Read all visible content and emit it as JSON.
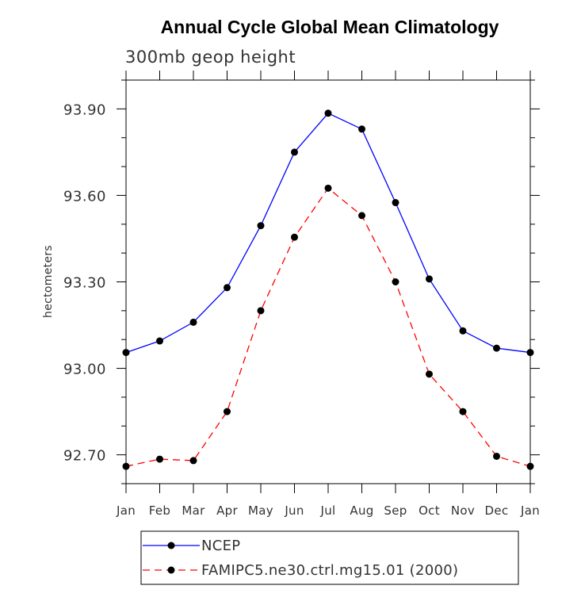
{
  "chart_data": {
    "type": "line",
    "title": "Annual Cycle Global Mean Climatology",
    "subtitle": "300mb geop height",
    "ylabel": "hectometers",
    "xlabel": "",
    "categories": [
      "Jan",
      "Feb",
      "Mar",
      "Apr",
      "May",
      "Jun",
      "Jul",
      "Aug",
      "Sep",
      "Oct",
      "Nov",
      "Dec",
      "Jan"
    ],
    "ylim": [
      92.6,
      94.0
    ],
    "yticks": [
      92.7,
      93.0,
      93.3,
      93.6,
      93.9
    ],
    "ytick_labels": [
      "92.70",
      "93.00",
      "93.30",
      "93.60",
      "93.90"
    ],
    "legend_position": "bottom",
    "series": [
      {
        "name": "NCEP",
        "color": "#0000ff",
        "line_style": "solid",
        "values": [
          93.055,
          93.095,
          93.16,
          93.28,
          93.495,
          93.75,
          93.885,
          93.83,
          93.575,
          93.31,
          93.13,
          93.07,
          93.055
        ]
      },
      {
        "name": "FAMIPC5.ne30.ctrl.mg15.01 (2000)",
        "color": "#ff0000",
        "line_style": "dashed",
        "values": [
          92.66,
          92.685,
          92.68,
          92.85,
          93.2,
          93.455,
          93.625,
          93.53,
          93.3,
          92.98,
          92.85,
          92.695,
          92.66
        ]
      }
    ]
  }
}
